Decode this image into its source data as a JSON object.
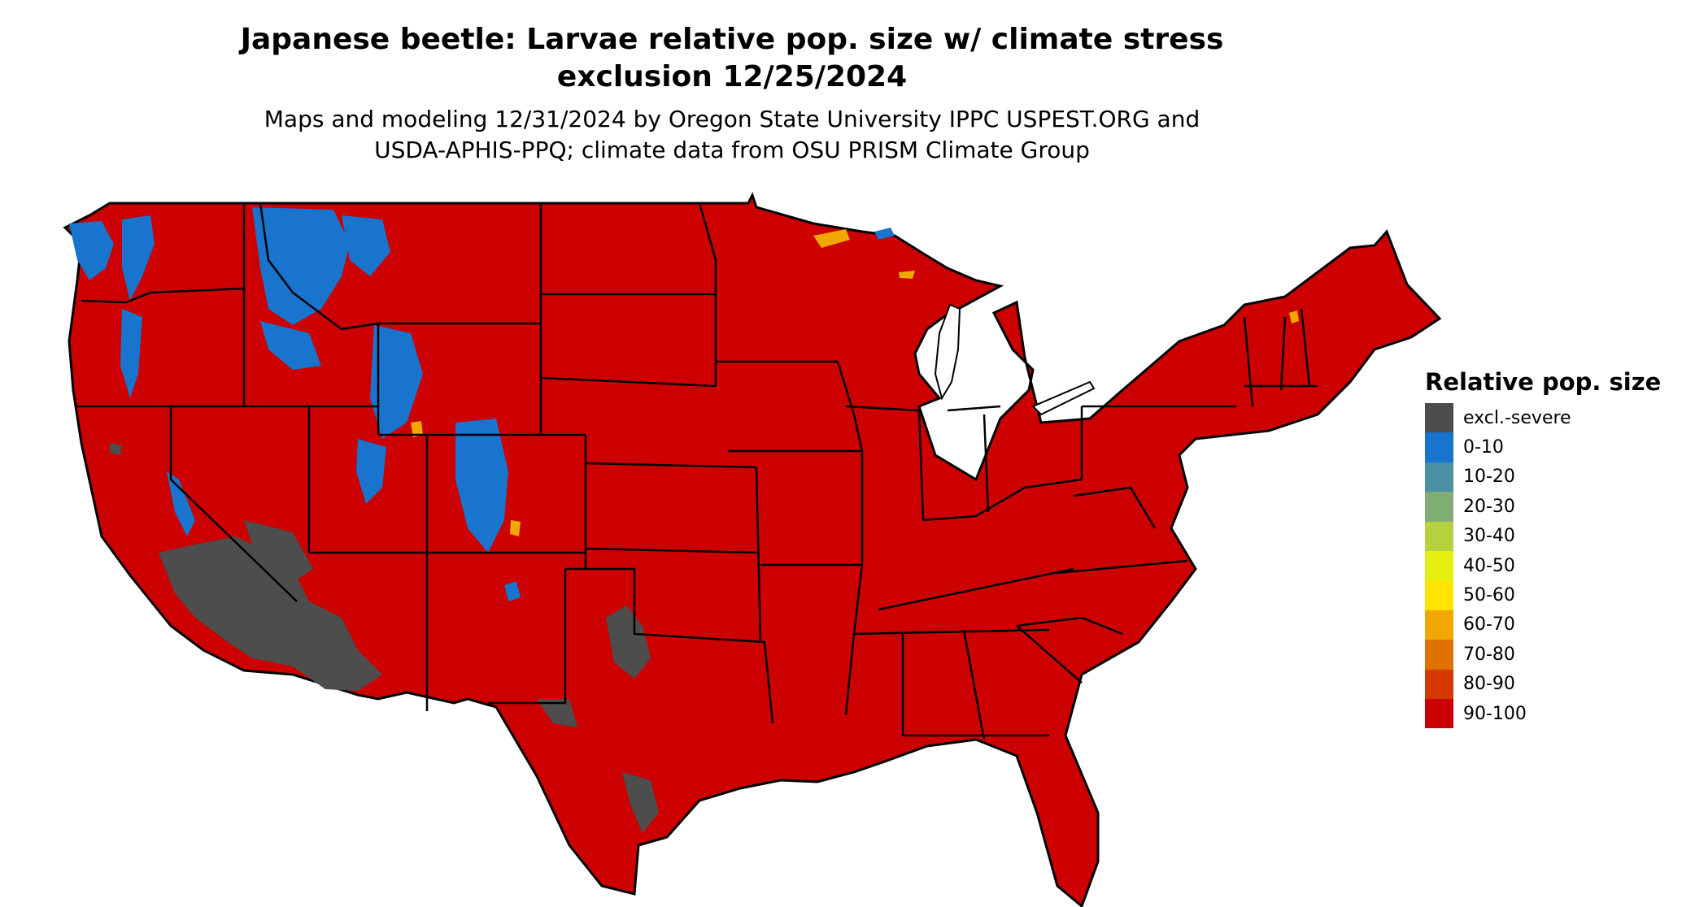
{
  "title": {
    "line1": "Japanese beetle: Larvae relative pop. size w/ climate stress",
    "line2": "exclusion 12/25/2024"
  },
  "subtitle": {
    "line1": "Maps and modeling 12/31/2024 by Oregon State University IPPC USPEST.ORG and",
    "line2": "USDA-APHIS-PPQ; climate data from OSU PRISM Climate Group"
  },
  "legend": {
    "title": "Relative pop. size",
    "items": [
      {
        "label": "excl.-severe",
        "color": "#4d4d4d"
      },
      {
        "label": "0-10",
        "color": "#1874cd"
      },
      {
        "label": "10-20",
        "color": "#4a90a4"
      },
      {
        "label": "20-30",
        "color": "#7fad73"
      },
      {
        "label": "30-40",
        "color": "#b5d13e"
      },
      {
        "label": "40-50",
        "color": "#e5ef12"
      },
      {
        "label": "50-60",
        "color": "#ffe400"
      },
      {
        "label": "60-70",
        "color": "#f0a800"
      },
      {
        "label": "70-80",
        "color": "#e07000"
      },
      {
        "label": "80-90",
        "color": "#d43a00"
      },
      {
        "label": "90-100",
        "color": "#cc0000"
      }
    ]
  },
  "map_colors": {
    "base": "#cc0000",
    "excluded": "#4d4d4d",
    "low": "#1874cd",
    "mid": "#f0a800",
    "border": "#000000"
  }
}
